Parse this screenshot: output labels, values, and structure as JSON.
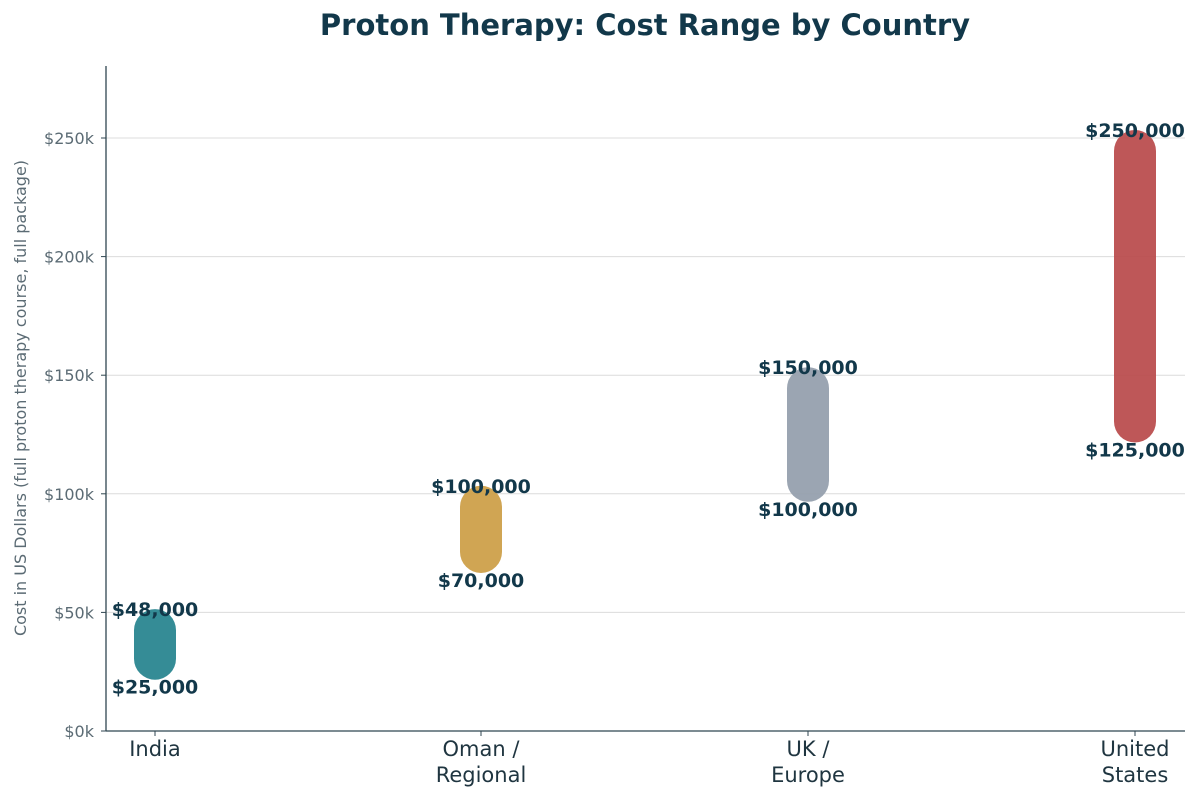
{
  "chart_data": {
    "type": "bar",
    "subtype": "floating-range",
    "title": "Proton Therapy: Cost Range by Country",
    "xlabel": "",
    "ylabel": "Cost in US Dollars (full proton therapy course, full package)",
    "ylim": [
      0,
      280000
    ],
    "yticks": [
      0,
      50000,
      100000,
      150000,
      200000,
      250000
    ],
    "ytick_labels": [
      "$0k",
      "$50k",
      "$100k",
      "$150k",
      "$200k",
      "$250k"
    ],
    "grid": "horizontal",
    "categories": [
      [
        "India"
      ],
      [
        "Oman /",
        "Regional"
      ],
      [
        "UK /",
        "Europe"
      ],
      [
        "United",
        "States"
      ]
    ],
    "low": [
      25000,
      70000,
      100000,
      125000
    ],
    "high": [
      48000,
      100000,
      150000,
      250000
    ],
    "low_labels": [
      "$25,000",
      "$70,000",
      "$100,000",
      "$125,000"
    ],
    "high_labels": [
      "$48,000",
      "$100,000",
      "$150,000",
      "$250,000"
    ],
    "colors": [
      "#26838e",
      "#cc9e46",
      "#939eac",
      "#b94a4b"
    ]
  }
}
